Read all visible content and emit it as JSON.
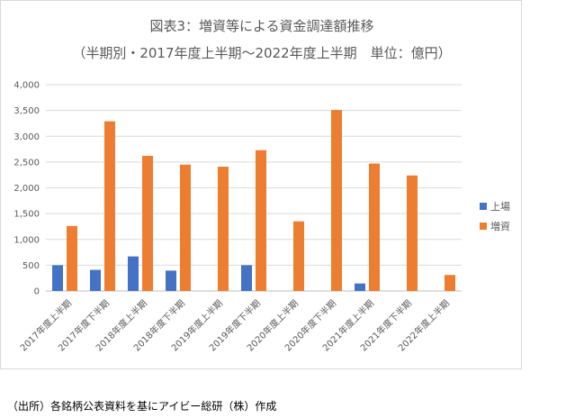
{
  "chart_data": {
    "type": "bar",
    "title": "図表3：増資等による資金調達額推移",
    "subtitle": "（半期別・2017年度上半期～2022年度上半期　単位：億円）",
    "categories": [
      "2017年度上半期",
      "2017年度下半期",
      "2018年度上半期",
      "2018年度下半期",
      "2019年度上半期",
      "2019年度下半期",
      "2020年度上半期",
      "2020年度下半期",
      "2021年度上半期",
      "2021年度下半期",
      "2022年度上半期"
    ],
    "series": [
      {
        "name": "上場",
        "color": "#4472c4",
        "values": [
          500,
          410,
          670,
          395,
          0,
          500,
          0,
          0,
          145,
          0,
          0
        ]
      },
      {
        "name": "増資",
        "color": "#ed7d31",
        "values": [
          1260,
          3290,
          2620,
          2450,
          2410,
          2730,
          1350,
          3510,
          2470,
          2240,
          310
        ]
      }
    ],
    "ylim": [
      0,
      4000
    ],
    "yticks": [
      "0",
      "500",
      "1,000",
      "1,500",
      "2,000",
      "2,500",
      "3,000",
      "3,500",
      "4,000"
    ],
    "grid": true,
    "legend": "right"
  },
  "source_note": "（出所）各銘柄公表資料を基にアイビー総研（株）作成"
}
